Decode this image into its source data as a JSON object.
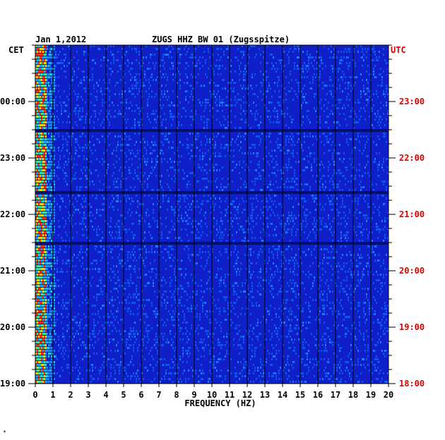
{
  "chart_data": {
    "type": "heatmap",
    "date": "Jan 1,2012",
    "title": "ZUGS HHZ BW 01 (Zugsspitze)",
    "xlabel": "FREQUENCY (HZ)",
    "xlim": [
      0,
      20
    ],
    "x_ticks": [
      "0",
      "1",
      "2",
      "3",
      "4",
      "5",
      "6",
      "7",
      "8",
      "9",
      "10",
      "11",
      "12",
      "13",
      "14",
      "15",
      "16",
      "17",
      "18",
      "19",
      "20"
    ],
    "left_axis": {
      "label": "CET",
      "ticks": [
        {
          "hour": 24,
          "label": "00:00"
        },
        {
          "hour": 23,
          "label": "23:00"
        },
        {
          "hour": 22,
          "label": "22:00"
        },
        {
          "hour": 21,
          "label": "21:00"
        },
        {
          "hour": 20,
          "label": "20:00"
        },
        {
          "hour": 19,
          "label": "19:00"
        }
      ]
    },
    "right_axis": {
      "label": "UTC",
      "ticks": [
        {
          "hour": 23,
          "label": "23:00"
        },
        {
          "hour": 22,
          "label": "22:00"
        },
        {
          "hour": 21,
          "label": "21:00"
        },
        {
          "hour": 20,
          "label": "20:00"
        },
        {
          "hour": 19,
          "label": "19:00"
        },
        {
          "hour": 18,
          "label": "18:00"
        }
      ]
    },
    "time_range_cet": [
      19,
      25
    ],
    "grid": true,
    "background_color": "#1020c8",
    "right_label_color": "#e00000",
    "footer_mark": "*"
  }
}
